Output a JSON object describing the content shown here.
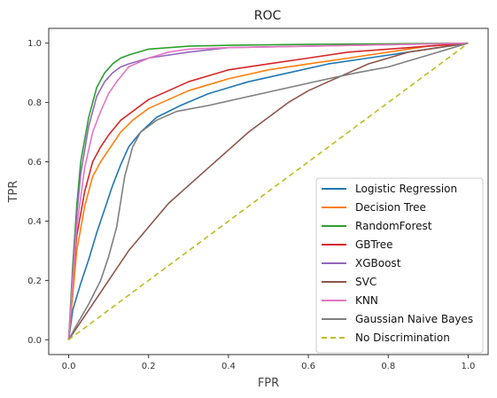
{
  "chart_data": {
    "type": "line",
    "title": "ROC",
    "xlabel": "FPR",
    "ylabel": "TPR",
    "xlim": [
      -0.05,
      1.05
    ],
    "ylim": [
      -0.05,
      1.05
    ],
    "xticks": [
      "0.0",
      "0.2",
      "0.4",
      "0.6",
      "0.8",
      "1.0"
    ],
    "yticks": [
      "0.0",
      "0.2",
      "0.4",
      "0.6",
      "0.8",
      "1.0"
    ],
    "grid": false,
    "legend_position": "lower-right",
    "series": [
      {
        "name": "Logistic Regression",
        "color": "#1f77b4",
        "style": "solid",
        "x": [
          0,
          0.01,
          0.03,
          0.05,
          0.07,
          0.09,
          0.11,
          0.13,
          0.15,
          0.18,
          0.22,
          0.28,
          0.35,
          0.45,
          0.55,
          0.65,
          0.75,
          0.85,
          0.95,
          1.0
        ],
        "y": [
          0,
          0.1,
          0.19,
          0.27,
          0.36,
          0.44,
          0.52,
          0.59,
          0.65,
          0.7,
          0.75,
          0.79,
          0.83,
          0.87,
          0.9,
          0.93,
          0.95,
          0.97,
          0.99,
          1.0
        ]
      },
      {
        "name": "Decision Tree",
        "color": "#ff7f0e",
        "style": "solid",
        "x": [
          0,
          0.01,
          0.02,
          0.04,
          0.06,
          0.08,
          0.1,
          0.13,
          0.16,
          0.2,
          0.25,
          0.3,
          0.4,
          0.5,
          0.6,
          0.7,
          0.8,
          0.9,
          1.0
        ],
        "y": [
          0,
          0.15,
          0.3,
          0.45,
          0.55,
          0.6,
          0.64,
          0.7,
          0.74,
          0.78,
          0.81,
          0.84,
          0.88,
          0.91,
          0.93,
          0.95,
          0.97,
          0.99,
          1.0
        ]
      },
      {
        "name": "RandomForest",
        "color": "#2ca02c",
        "style": "solid",
        "x": [
          0,
          0.01,
          0.02,
          0.03,
          0.05,
          0.07,
          0.09,
          0.11,
          0.13,
          0.15,
          0.2,
          0.3,
          0.4,
          0.6,
          0.8,
          1.0
        ],
        "y": [
          0,
          0.25,
          0.45,
          0.6,
          0.75,
          0.85,
          0.9,
          0.93,
          0.95,
          0.96,
          0.98,
          0.99,
          0.993,
          0.996,
          0.998,
          1.0
        ]
      },
      {
        "name": "GBTree",
        "color": "#d62728",
        "style": "solid",
        "x": [
          0,
          0.01,
          0.02,
          0.04,
          0.06,
          0.08,
          0.1,
          0.13,
          0.16,
          0.2,
          0.25,
          0.3,
          0.35,
          0.4,
          0.5,
          0.6,
          0.7,
          0.8,
          0.9,
          1.0
        ],
        "y": [
          0,
          0.2,
          0.35,
          0.5,
          0.6,
          0.65,
          0.69,
          0.74,
          0.77,
          0.81,
          0.84,
          0.87,
          0.89,
          0.91,
          0.93,
          0.95,
          0.97,
          0.98,
          0.99,
          1.0
        ]
      },
      {
        "name": "XGBoost",
        "color": "#9467bd",
        "style": "solid",
        "x": [
          0,
          0.01,
          0.02,
          0.03,
          0.05,
          0.07,
          0.09,
          0.11,
          0.13,
          0.15,
          0.2,
          0.3,
          0.4,
          0.6,
          0.8,
          1.0
        ],
        "y": [
          0,
          0.22,
          0.42,
          0.56,
          0.72,
          0.82,
          0.87,
          0.9,
          0.92,
          0.93,
          0.95,
          0.97,
          0.985,
          0.99,
          0.995,
          1.0
        ]
      },
      {
        "name": "SVC",
        "color": "#8c564b",
        "style": "solid",
        "x": [
          0,
          0.05,
          0.1,
          0.15,
          0.2,
          0.25,
          0.3,
          0.35,
          0.4,
          0.45,
          0.5,
          0.55,
          0.6,
          0.65,
          0.7,
          0.75,
          0.8,
          0.85,
          0.9,
          0.95,
          1.0
        ],
        "y": [
          0,
          0.1,
          0.2,
          0.3,
          0.38,
          0.46,
          0.52,
          0.58,
          0.64,
          0.7,
          0.75,
          0.8,
          0.84,
          0.87,
          0.9,
          0.93,
          0.95,
          0.97,
          0.98,
          0.99,
          1.0
        ]
      },
      {
        "name": "KNN",
        "color": "#e377c2",
        "style": "solid",
        "x": [
          0,
          0.01,
          0.02,
          0.04,
          0.06,
          0.08,
          0.1,
          0.12,
          0.15,
          0.2,
          0.25,
          0.3,
          0.4,
          0.6,
          0.8,
          1.0
        ],
        "y": [
          0,
          0.2,
          0.38,
          0.58,
          0.7,
          0.77,
          0.83,
          0.87,
          0.92,
          0.95,
          0.97,
          0.98,
          0.985,
          0.99,
          0.995,
          1.0
        ]
      },
      {
        "name": "Gaussian Naive Bayes",
        "color": "#7f7f7f",
        "style": "solid",
        "x": [
          0,
          0.02,
          0.05,
          0.08,
          0.1,
          0.12,
          0.14,
          0.16,
          0.18,
          0.22,
          0.27,
          0.35,
          0.45,
          0.55,
          0.65,
          0.72,
          0.8,
          0.9,
          1.0
        ],
        "y": [
          0,
          0.05,
          0.12,
          0.2,
          0.28,
          0.38,
          0.55,
          0.65,
          0.7,
          0.74,
          0.77,
          0.79,
          0.82,
          0.85,
          0.88,
          0.9,
          0.92,
          0.96,
          1.0
        ]
      },
      {
        "name": "No Discrimination",
        "color": "#bcbd22",
        "style": "dashed",
        "x": [
          0,
          1.0
        ],
        "y": [
          0,
          1.0
        ]
      }
    ]
  }
}
